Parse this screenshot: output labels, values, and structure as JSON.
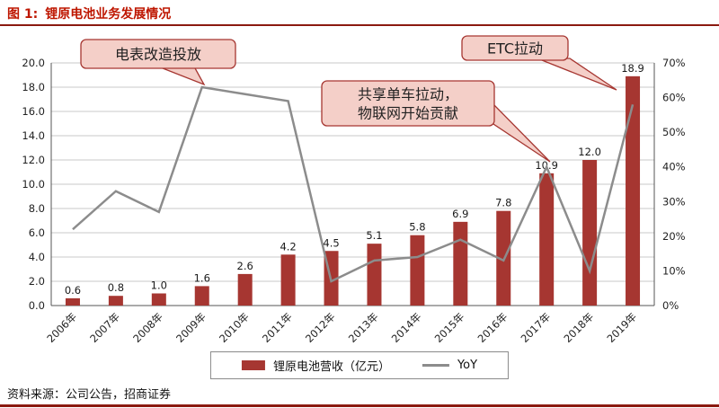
{
  "header": {
    "figure_label": "图 1:",
    "title": "锂原电池业务发展情况"
  },
  "legend": {
    "bar_label": "锂原电池营收（亿元）",
    "line_label": "YoY"
  },
  "footer": {
    "source": "资料来源：公司公告，招商证券"
  },
  "colors": {
    "bar": "#A63631",
    "line": "#8C8C8C",
    "title_red": "#BE1600",
    "rule_red": "#8B1A10",
    "callout_fill": "#F4CFC8",
    "callout_border": "#A63631"
  },
  "chart_data": {
    "type": "bar",
    "subtype": "bar+line dual axis",
    "title": "锂原电池业务发展情况",
    "categories": [
      "2006年",
      "2007年",
      "2008年",
      "2009年",
      "2010年",
      "2011年",
      "2012年",
      "2013年",
      "2014年",
      "2015年",
      "2016年",
      "2017年",
      "2018年",
      "2019年"
    ],
    "series": [
      {
        "name": "锂原电池营收（亿元）",
        "type": "bar",
        "axis": "left",
        "values": [
          0.6,
          0.8,
          1.0,
          1.6,
          2.6,
          4.2,
          4.5,
          5.1,
          5.8,
          6.9,
          7.8,
          10.9,
          12.0,
          18.9
        ],
        "labels": [
          "0.6",
          "0.8",
          "1.0",
          "1.6",
          "2.6",
          "4.2",
          "4.5",
          "5.1",
          "5.8",
          "6.9",
          "7.8",
          "10.9",
          "12.0",
          "18.9"
        ]
      },
      {
        "name": "YoY",
        "type": "line",
        "axis": "right",
        "values_pct": [
          22,
          33,
          27,
          63,
          61,
          59,
          7,
          13,
          14,
          19,
          13,
          40,
          10,
          58
        ]
      }
    ],
    "left_axis": {
      "min": 0,
      "max": 20,
      "step": 2,
      "ticks": [
        "0.0",
        "2.0",
        "4.0",
        "6.0",
        "8.0",
        "10.0",
        "12.0",
        "14.0",
        "16.0",
        "18.0",
        "20.0"
      ]
    },
    "right_axis": {
      "min": 0,
      "max": 70,
      "step": 10,
      "ticks": [
        "0%",
        "10%",
        "20%",
        "30%",
        "40%",
        "50%",
        "60%",
        "70%"
      ]
    },
    "grid": true,
    "legend_position": "bottom",
    "annotations": [
      {
        "lines": [
          "电表改造投放"
        ],
        "target": "2009年"
      },
      {
        "lines": [
          "ETC拉动"
        ],
        "target": "2019年"
      },
      {
        "lines": [
          "共享单车拉动，",
          "物联网开始贡献"
        ],
        "target": "2017年"
      }
    ]
  }
}
